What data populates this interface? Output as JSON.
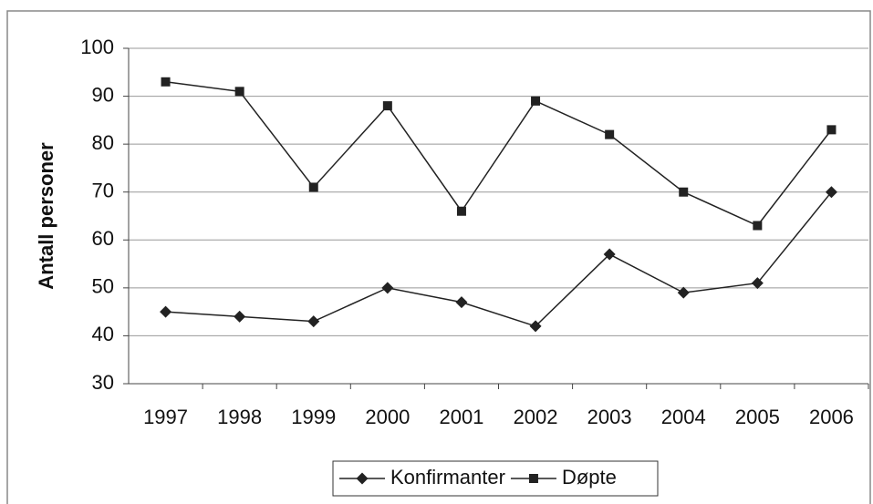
{
  "chart_data": {
    "type": "line",
    "y_label": "Antall personer",
    "categories": [
      "1997",
      "1998",
      "1999",
      "2000",
      "2001",
      "2002",
      "2003",
      "2004",
      "2005",
      "2006"
    ],
    "series": [
      {
        "name": "Konfirmanter",
        "color": "#222222",
        "marker": "diamond",
        "values": [
          45,
          44,
          43,
          50,
          47,
          42,
          57,
          49,
          51,
          70
        ]
      },
      {
        "name": "Døpte",
        "color": "#222222",
        "marker": "square",
        "values": [
          93,
          91,
          71,
          88,
          66,
          89,
          82,
          70,
          63,
          83
        ]
      }
    ],
    "ylim": [
      30,
      100
    ],
    "yticks": [
      30,
      40,
      50,
      60,
      70,
      80,
      90,
      100
    ],
    "grid": true,
    "legend": "bottom"
  }
}
